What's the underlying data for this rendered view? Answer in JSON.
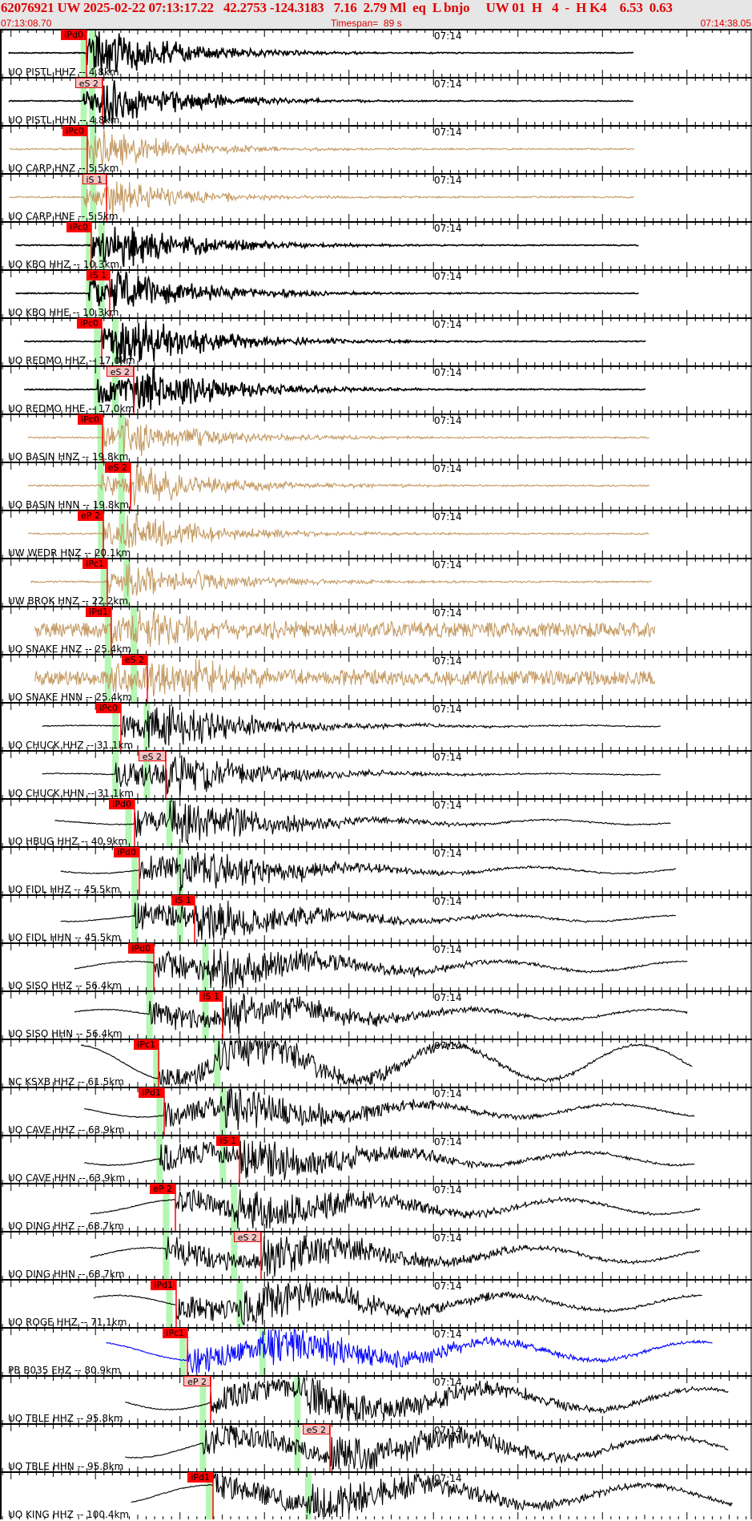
{
  "header": {
    "title": "62076921 UW 2025-02-22 07:13:17.22   42.2753 -124.3183   7.16  2.79 Ml  eq  L bnjo     UW 01  H   4  -  H K4    6.53  0.63",
    "start_time": "07:13:08.70",
    "timespan": "Timespan=  89 s",
    "end_time": "07:14:38.05",
    "origin_time": "07:13:17.22",
    "depth_km": 7.16,
    "timespan_s": 89
  },
  "colors": {
    "header_text": "#e00000",
    "pick": "#ff0000",
    "theoretical_band": "#b3f7b3",
    "black_trace": "#000000",
    "strong_motion_trace": "#c49a62",
    "ehz_trace": "#0000ff"
  },
  "minute_label": "07:14",
  "channels": [
    {
      "label": "UO PISTL HHZ -- 4.8km",
      "dist": 4.8,
      "color": "black",
      "pick": {
        "label": "iPd0",
        "time": "07:13:18.94",
        "style": "solid"
      }
    },
    {
      "label": "UO PISTL HHN -- 4.8km",
      "dist": 4.8,
      "color": "black",
      "pick": {
        "label": "eS 2",
        "time": "07:13:20.83",
        "style": "pale"
      }
    },
    {
      "label": "UO CARP HNZ -- 5.5km",
      "dist": 5.5,
      "color": "tan",
      "pick": {
        "label": "iPc0",
        "time": "07:13:19.03",
        "style": "solid"
      }
    },
    {
      "label": "UO CARP HNE -- 5.5km",
      "dist": 5.5,
      "color": "tan",
      "pick": {
        "label": "iS 1",
        "time": "07:13:21.31",
        "style": "pale"
      }
    },
    {
      "label": "UO KBO HHZ -- 10.3km",
      "dist": 10.3,
      "color": "black",
      "pick": {
        "label": "iPc0",
        "time": "07:13:19.50",
        "style": "solid"
      }
    },
    {
      "label": "UO KBO HHE -- 10.3km",
      "dist": 10.3,
      "color": "black",
      "pick": {
        "label": "iS 1",
        "time": "07:13:21.68",
        "style": "solid"
      }
    },
    {
      "label": "UO REDMO HHZ -- 17.0km",
      "dist": 17.0,
      "color": "black",
      "pick": {
        "label": "iPc0",
        "time": "07:13:20.74",
        "style": "solid"
      }
    },
    {
      "label": "UO REDMO HHE -- 17.0km",
      "dist": 17.0,
      "color": "black",
      "pick": {
        "label": "eS 2",
        "time": "07:13:24.53",
        "style": "pale"
      }
    },
    {
      "label": "UO BASIN HNZ -- 19.8km",
      "dist": 19.8,
      "color": "tan",
      "pick": {
        "label": "iPc0",
        "time": "07:13:20.83",
        "style": "solid"
      }
    },
    {
      "label": "UO BASIN HNN -- 19.8km",
      "dist": 19.8,
      "color": "tan",
      "pick": {
        "label": "eS 2",
        "time": "07:13:24.15",
        "style": "solid"
      }
    },
    {
      "label": "UW WEDR HNZ -- 20.1km",
      "dist": 20.1,
      "color": "tan",
      "pick": {
        "label": "eP 2",
        "time": "07:13:20.93",
        "style": "solid"
      }
    },
    {
      "label": "UW BROK HNZ -- 22.2km",
      "dist": 22.2,
      "color": "tan",
      "pick": {
        "label": "iPc1",
        "time": "07:13:21.40",
        "style": "solid"
      }
    },
    {
      "label": "UO SNAKE HNZ -- 25.4km",
      "dist": 25.4,
      "color": "tan",
      "pick": {
        "label": "iPd1",
        "time": "07:13:21.87",
        "style": "solid"
      }
    },
    {
      "label": "UO SNAKE HNN -- 25.4km",
      "dist": 25.4,
      "color": "tan",
      "pick": {
        "label": "eS 2",
        "time": "07:13:26.14",
        "style": "solid"
      }
    },
    {
      "label": "UO CHUCK HHZ -- 31.1km",
      "dist": 31.1,
      "color": "black",
      "pick": {
        "label": "iPc0",
        "time": "07:13:23.01",
        "style": "solid"
      }
    },
    {
      "label": "UO CHUCK HHN -- 31.1km",
      "dist": 31.1,
      "color": "black",
      "pick": {
        "label": "eS 2",
        "time": "07:13:28.32",
        "style": "pale"
      }
    },
    {
      "label": "UO HBUG HHZ -- 40.9km",
      "dist": 40.9,
      "color": "black",
      "pick": {
        "label": "iPd0",
        "time": "07:13:24.62",
        "style": "solid"
      }
    },
    {
      "label": "UO FIDL HHZ -- 45.5km",
      "dist": 45.5,
      "color": "black",
      "pick": {
        "label": "iPd0",
        "time": "07:13:25.19",
        "style": "solid"
      }
    },
    {
      "label": "UO FIDL HHN -- 45.5km",
      "dist": 45.5,
      "color": "black",
      "pick": {
        "label": "iS 1",
        "time": "07:13:31.73",
        "style": "solid"
      }
    },
    {
      "label": "UO SISO HHZ -- 56.4km",
      "dist": 56.4,
      "color": "black",
      "pick": {
        "label": "iPd0",
        "time": "07:13:26.90",
        "style": "solid"
      }
    },
    {
      "label": "UO SISO HHN -- 56.4km",
      "dist": 56.4,
      "color": "black",
      "pick": {
        "label": "iS 1",
        "time": "07:13:35.05",
        "style": "solid"
      }
    },
    {
      "label": "NC KSXB HHZ -- 61.5km",
      "dist": 61.5,
      "color": "black",
      "pick": {
        "label": "iPc1",
        "time": "07:13:27.47",
        "style": "solid"
      }
    },
    {
      "label": "UO CAVE HHZ -- 63.9km",
      "dist": 63.9,
      "color": "black",
      "pick": {
        "label": "iPd1",
        "time": "07:13:28.13",
        "style": "solid"
      }
    },
    {
      "label": "UO CAVE HHN -- 63.9km",
      "dist": 63.9,
      "color": "black",
      "pick": {
        "label": "iS 1",
        "time": "07:13:37.04",
        "style": "solid"
      }
    },
    {
      "label": "UO DING HHZ -- 68.7km",
      "dist": 68.7,
      "color": "black",
      "pick": {
        "label": "eP 2",
        "time": "07:13:29.46",
        "style": "solid"
      }
    },
    {
      "label": "UO DING HHN -- 68.7km",
      "dist": 68.7,
      "color": "black",
      "pick": {
        "label": "eS 2",
        "time": "07:13:39.60",
        "style": "pale"
      }
    },
    {
      "label": "UO ROGE HHZ -- 71.1km",
      "dist": 71.1,
      "color": "black",
      "pick": {
        "label": "iPd1",
        "time": "07:13:29.55",
        "style": "solid"
      }
    },
    {
      "label": "PB B035 EHZ -- 80.9km",
      "dist": 80.9,
      "color": "blue",
      "pick": {
        "label": "iPc1",
        "time": "07:13:30.88",
        "style": "solid"
      }
    },
    {
      "label": "UO TBLE HHZ -- 95.8km",
      "dist": 95.8,
      "color": "black",
      "pick": {
        "label": "eP 2",
        "time": "07:13:33.63",
        "style": "pale"
      }
    },
    {
      "label": "UO TBLE HHN -- 95.8km",
      "dist": 95.8,
      "color": "black",
      "pick": {
        "label": "eS 2",
        "time": "07:13:47.75",
        "style": "pale"
      }
    },
    {
      "label": "UO KING HHZ -- 100.4km",
      "dist": 100.4,
      "color": "black",
      "pick": {
        "label": "iPd1",
        "time": "07:13:33.91",
        "style": "solid"
      }
    }
  ]
}
